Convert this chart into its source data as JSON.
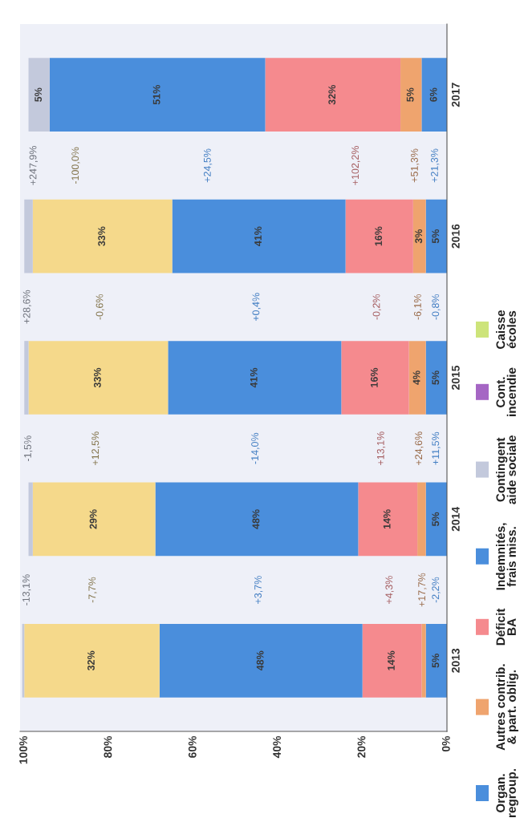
{
  "chart_data": {
    "type": "bar",
    "orientation": "horizontal",
    "stacked": true,
    "categories": [
      "2017",
      "2016",
      "2015",
      "2014",
      "2013"
    ],
    "series": [
      {
        "name": "Organ.\nregroup.",
        "color": "#4a8edc",
        "values": [
          6,
          5,
          5,
          5,
          5
        ],
        "value_labels": [
          "6%",
          "5%",
          "5%",
          "5%",
          "5%"
        ]
      },
      {
        "name": "Autres contrib.\n& part. oblig.",
        "color": "#efa46e",
        "values": [
          5,
          3,
          4,
          2,
          1
        ],
        "value_labels": [
          "5%",
          "3%",
          "4%",
          null,
          null
        ]
      },
      {
        "name": "Déficit\nBA",
        "color": "#f58a8e",
        "values": [
          32,
          16,
          16,
          14,
          14
        ],
        "value_labels": [
          "32%",
          "16%",
          "16%",
          "14%",
          "14%"
        ]
      },
      {
        "name": "Indemnités,\nfrais miss.",
        "color": "#4a8edc",
        "values": [
          51,
          41,
          41,
          48,
          48
        ],
        "value_labels": [
          "51%",
          "41%",
          "41%",
          "48%",
          "48%"
        ]
      },
      {
        "color": "#f5d98b",
        "values": [
          0,
          33,
          33,
          29,
          32
        ],
        "value_labels": [
          null,
          "33%",
          "33%",
          "29%",
          "32%"
        ]
      },
      {
        "name": "Contingent\naide sociale",
        "color": "#c3c9dc",
        "values": [
          5,
          2,
          1,
          1,
          0.5
        ],
        "value_labels": [
          "5%",
          null,
          null,
          null,
          null
        ]
      },
      {
        "name": "Cont.\nincendie",
        "color": "#a566c4",
        "values": [
          0,
          0,
          0,
          0,
          0
        ]
      },
      {
        "name": "Caisse\nécoles",
        "color": "#cde47a",
        "values": [
          0,
          0,
          0,
          0,
          0
        ]
      }
    ],
    "xlim": [
      101,
      0
    ],
    "xticks": [
      {
        "value": 0,
        "label": "0%"
      },
      {
        "value": 20,
        "label": "20%"
      },
      {
        "value": 40,
        "label": "40%"
      },
      {
        "value": 60,
        "label": "60%"
      },
      {
        "value": 80,
        "label": "80%"
      },
      {
        "value": 100,
        "label": "100%"
      }
    ],
    "annotations": [
      "+21,3%",
      "+51,3%",
      "+102,2%",
      "+24,5%",
      "-100,0%",
      "+247,9%",
      "-0,8%",
      "-6,1%",
      "-0,2%",
      "+0,4%",
      "-0,6%",
      "+28,6%",
      "+11,5%",
      "+24,6%",
      "+13,1%",
      "-14,0%",
      "+12,5%",
      "-1,5%",
      "-2,2%",
      "+17,7%",
      "+4,3%",
      "+3,7%",
      "-7,7%",
      "-13,1%"
    ],
    "legend": "right",
    "grid": false
  }
}
